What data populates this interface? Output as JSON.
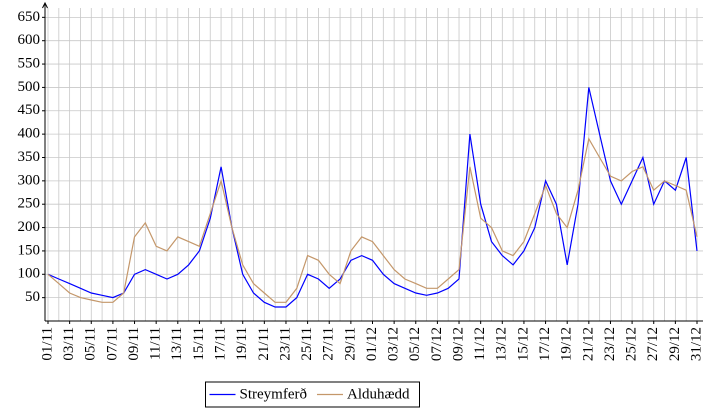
{
  "chart_data": {
    "type": "line",
    "categories": [
      "01/11",
      null,
      "03/11",
      null,
      "05/11",
      null,
      "07/11",
      null,
      "09/11",
      null,
      "11/11",
      null,
      "13/11",
      null,
      "15/11",
      null,
      "17/11",
      null,
      "19/11",
      null,
      "21/11",
      null,
      "23/11",
      null,
      "25/11",
      null,
      "27/11",
      null,
      "29/11",
      null,
      "01/12",
      null,
      "03/12",
      null,
      "05/12",
      null,
      "07/12",
      null,
      "09/12",
      null,
      "11/12",
      null,
      "13/12",
      null,
      "15/12",
      null,
      "17/12",
      null,
      "19/12",
      null,
      "21/12",
      null,
      "23/12",
      null,
      "25/12",
      null,
      "27/12",
      null,
      "29/12",
      null,
      "31/12"
    ],
    "series": [
      {
        "name": "Streymferð",
        "color": "#0000ff",
        "values": [
          100,
          90,
          80,
          70,
          60,
          55,
          50,
          60,
          100,
          110,
          100,
          90,
          100,
          120,
          150,
          220,
          330,
          200,
          100,
          60,
          40,
          30,
          30,
          50,
          100,
          90,
          70,
          90,
          130,
          140,
          130,
          100,
          80,
          70,
          60,
          55,
          60,
          70,
          90,
          400,
          250,
          170,
          140,
          120,
          150,
          200,
          300,
          250,
          120,
          250,
          500,
          400,
          300,
          250,
          300,
          350,
          250,
          300,
          280,
          350,
          150
        ]
      },
      {
        "name": "Alduhædd",
        "color": "#c4976a",
        "values": [
          100,
          80,
          60,
          50,
          45,
          40,
          40,
          60,
          180,
          210,
          160,
          150,
          180,
          170,
          160,
          230,
          300,
          200,
          120,
          80,
          60,
          40,
          40,
          70,
          140,
          130,
          100,
          80,
          150,
          180,
          170,
          140,
          110,
          90,
          80,
          70,
          70,
          90,
          110,
          330,
          220,
          200,
          150,
          140,
          170,
          230,
          290,
          230,
          200,
          280,
          390,
          350,
          310,
          300,
          320,
          330,
          280,
          300,
          290,
          280,
          180
        ]
      }
    ],
    "ylim": [
      0,
      670
    ],
    "yticks": [
      50,
      100,
      150,
      200,
      250,
      300,
      350,
      400,
      450,
      500,
      550,
      600,
      650
    ],
    "grid": true,
    "legend": "bottom"
  }
}
